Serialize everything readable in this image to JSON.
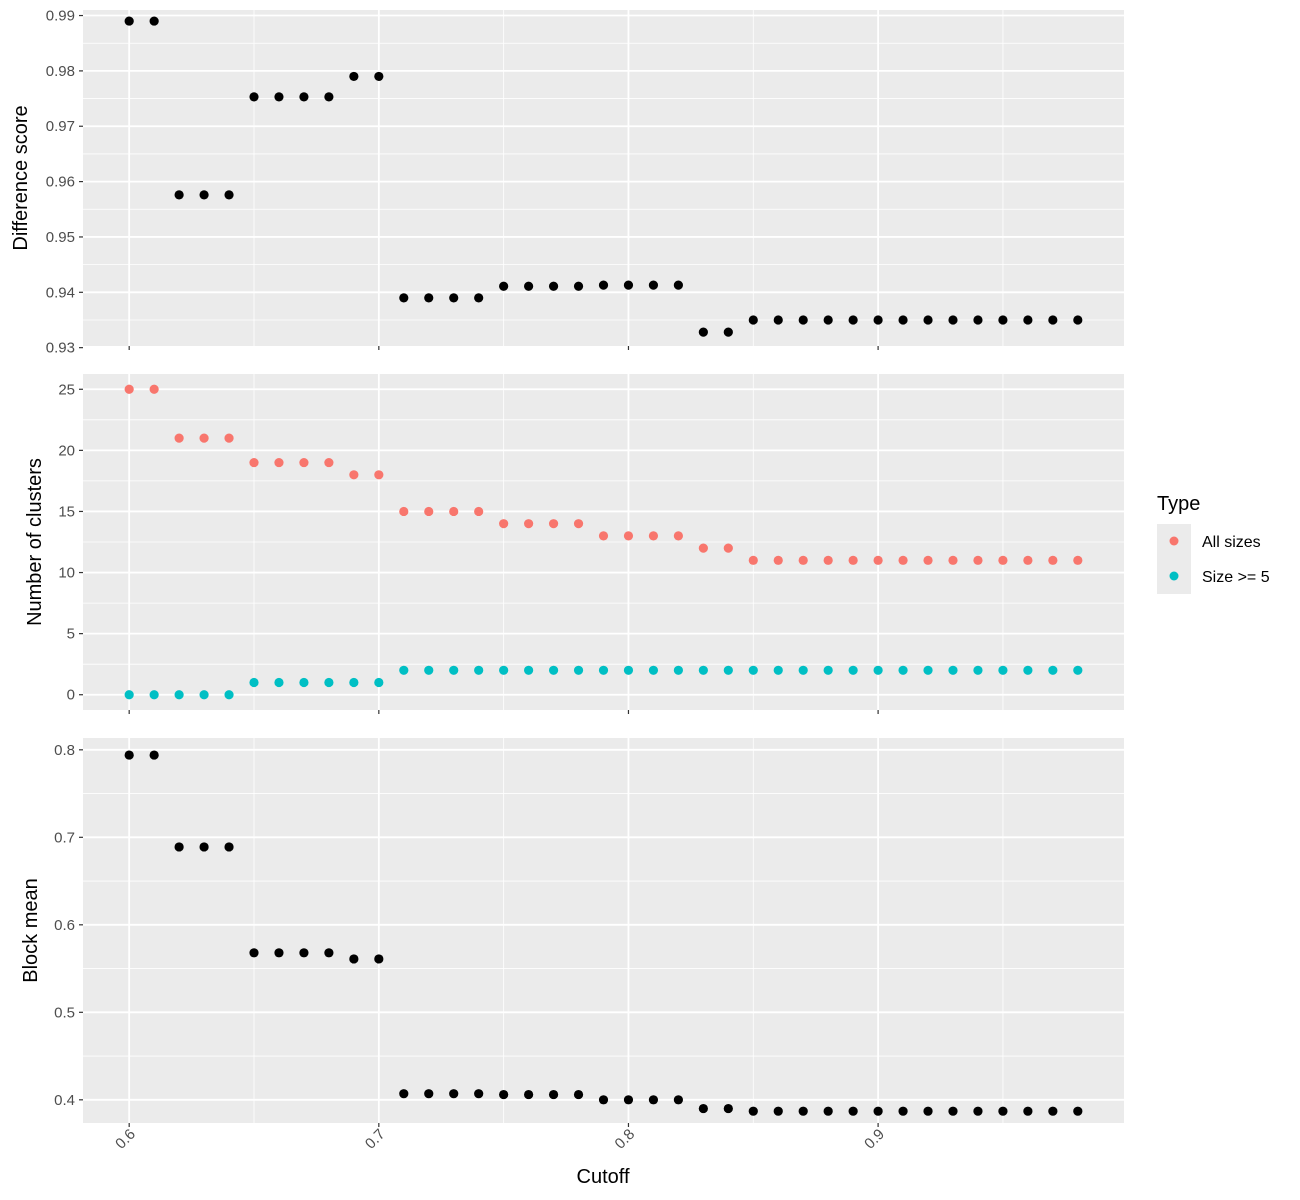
{
  "chart_data": {
    "type": "scatter",
    "xlabel": "Cutoff",
    "x_ticks": [
      0.6,
      0.7,
      0.8,
      0.9
    ],
    "x_tick_labels": [
      "0.6",
      "0.7",
      "0.8",
      "0.9"
    ],
    "xlim": [
      0.5815,
      0.9985
    ],
    "x": [
      0.6,
      0.61,
      0.62,
      0.63,
      0.64,
      0.65,
      0.66,
      0.67,
      0.68,
      0.69,
      0.7,
      0.71,
      0.72,
      0.73,
      0.74,
      0.75,
      0.76,
      0.77,
      0.78,
      0.79,
      0.8,
      0.81,
      0.82,
      0.83,
      0.84,
      0.85,
      0.86,
      0.87,
      0.88,
      0.89,
      0.9,
      0.91,
      0.92,
      0.93,
      0.94,
      0.95,
      0.96,
      0.97,
      0.98
    ],
    "colors": {
      "panel_bg": "#ebebeb",
      "grid": "#ffffff",
      "all_sizes": "#f8766d",
      "size_ge_5": "#00bfc4",
      "points": "#000000"
    },
    "panels": [
      {
        "ylabel": "Difference score",
        "ylim": [
          0.9303,
          0.991
        ],
        "y_ticks": [
          0.93,
          0.94,
          0.95,
          0.96,
          0.97,
          0.98,
          0.99
        ],
        "y_tick_labels": [
          "0.93",
          "0.94",
          "0.95",
          "0.96",
          "0.97",
          "0.98",
          "0.99"
        ],
        "series": [
          {
            "color": "#000000",
            "values": [
              0.989,
              0.989,
              0.9576,
              0.9576,
              0.9576,
              0.9753,
              0.9753,
              0.9753,
              0.9753,
              0.979,
              0.979,
              0.939,
              0.939,
              0.939,
              0.939,
              0.9411,
              0.9411,
              0.9411,
              0.9411,
              0.9413,
              0.9413,
              0.9413,
              0.9413,
              0.9328,
              0.9328,
              0.935,
              0.935,
              0.935,
              0.935,
              0.935,
              0.935,
              0.935,
              0.935,
              0.935,
              0.935,
              0.935,
              0.935,
              0.935,
              0.935
            ]
          }
        ]
      },
      {
        "ylabel": "Number of clusters",
        "ylim": [
          -1.25,
          26.25
        ],
        "y_ticks": [
          0,
          5,
          10,
          15,
          20,
          25
        ],
        "y_tick_labels": [
          "0",
          "5",
          "10",
          "15",
          "20",
          "25"
        ],
        "series": [
          {
            "name": "All sizes",
            "color": "#f8766d",
            "values": [
              25,
              25,
              21,
              21,
              21,
              19,
              19,
              19,
              19,
              18,
              18,
              15,
              15,
              15,
              15,
              14,
              14,
              14,
              14,
              13,
              13,
              13,
              13,
              12,
              12,
              11,
              11,
              11,
              11,
              11,
              11,
              11,
              11,
              11,
              11,
              11,
              11,
              11,
              11
            ]
          },
          {
            "name": "Size >= 5",
            "color": "#00bfc4",
            "values": [
              0,
              0,
              0,
              0,
              0,
              1,
              1,
              1,
              1,
              1,
              1,
              2,
              2,
              2,
              2,
              2,
              2,
              2,
              2,
              2,
              2,
              2,
              2,
              2,
              2,
              2,
              2,
              2,
              2,
              2,
              2,
              2,
              2,
              2,
              2,
              2,
              2,
              2,
              2
            ]
          }
        ]
      },
      {
        "ylabel": "Block mean",
        "ylim": [
          0.3735,
          0.8135
        ],
        "y_ticks": [
          0.4,
          0.5,
          0.6,
          0.7,
          0.8
        ],
        "y_tick_labels": [
          "0.4",
          "0.5",
          "0.6",
          "0.7",
          "0.8"
        ],
        "series": [
          {
            "color": "#000000",
            "values": [
              0.794,
              0.794,
              0.689,
              0.689,
              0.689,
              0.568,
              0.568,
              0.568,
              0.568,
              0.561,
              0.561,
              0.407,
              0.407,
              0.407,
              0.407,
              0.406,
              0.406,
              0.406,
              0.406,
              0.4,
              0.4,
              0.4,
              0.4,
              0.39,
              0.39,
              0.387,
              0.387,
              0.387,
              0.387,
              0.387,
              0.387,
              0.387,
              0.387,
              0.387,
              0.387,
              0.387,
              0.387,
              0.387,
              0.387
            ]
          }
        ]
      }
    ],
    "legend": {
      "title": "Type",
      "placement": "right",
      "entries": [
        {
          "label": "All sizes",
          "color": "#f8766d"
        },
        {
          "label": "Size >= 5",
          "color": "#00bfc4"
        }
      ]
    }
  }
}
